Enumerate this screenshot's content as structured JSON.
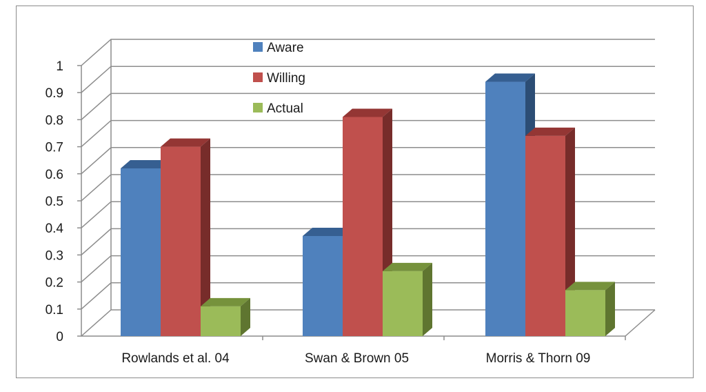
{
  "chart_data": {
    "type": "bar",
    "title": "",
    "xlabel": "",
    "ylabel": "",
    "categories": [
      "Rowlands et al. 04",
      "Swan & Brown 05",
      "Morris & Thorn 09"
    ],
    "series": [
      {
        "name": "Aware",
        "values": [
          0.62,
          0.37,
          0.94
        ],
        "color": "#4f81bd",
        "top": "#365f91",
        "side": "#2c4d75"
      },
      {
        "name": "Willing",
        "values": [
          0.7,
          0.81,
          0.74
        ],
        "color": "#c0504d",
        "top": "#943634",
        "side": "#772c2a"
      },
      {
        "name": "Actual",
        "values": [
          0.11,
          0.24,
          0.17
        ],
        "color": "#9bbb59",
        "top": "#76923c",
        "side": "#5f7530"
      }
    ],
    "ylim": [
      0,
      1
    ],
    "yticks": [
      "0",
      "0.1",
      "0.2",
      "0.3",
      "0.4",
      "0.5",
      "0.6",
      "0.7",
      "0.8",
      "0.9",
      "1"
    ],
    "grid": true,
    "legend_position": "top-center",
    "style": "3d-clustered-column"
  }
}
